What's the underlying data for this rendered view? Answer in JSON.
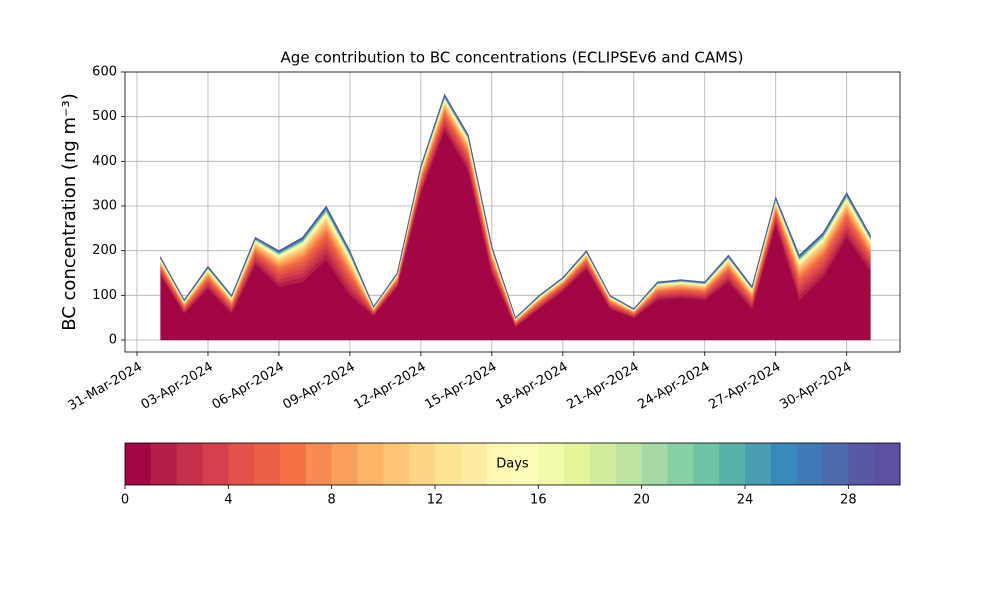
{
  "chart_data": {
    "type": "stacked-area",
    "title": "Age contribution to BC concentrations (ECLIPSEv6 and CAMS)",
    "y_label": "BC concentration (ng m⁻³)",
    "x": [
      "2024-04-01",
      "2024-04-02",
      "2024-04-03",
      "2024-04-04",
      "2024-04-05",
      "2024-04-06",
      "2024-04-07",
      "2024-04-08",
      "2024-04-09",
      "2024-04-10",
      "2024-04-11",
      "2024-04-12",
      "2024-04-13",
      "2024-04-14",
      "2024-04-15",
      "2024-04-16",
      "2024-04-17",
      "2024-04-18",
      "2024-04-19",
      "2024-04-20",
      "2024-04-21",
      "2024-04-22",
      "2024-04-23",
      "2024-04-24",
      "2024-04-25",
      "2024-04-26",
      "2024-04-27",
      "2024-04-28",
      "2024-04-29",
      "2024-04-30",
      "2024-05-01"
    ],
    "xlim": [
      "2024-03-31",
      "2024-05-02"
    ],
    "xticks": [
      {
        "value": "2024-03-31",
        "label": "31-Mar-2024"
      },
      {
        "value": "2024-04-03",
        "label": "03-Apr-2024"
      },
      {
        "value": "2024-04-06",
        "label": "06-Apr-2024"
      },
      {
        "value": "2024-04-09",
        "label": "09-Apr-2024"
      },
      {
        "value": "2024-04-12",
        "label": "12-Apr-2024"
      },
      {
        "value": "2024-04-15",
        "label": "15-Apr-2024"
      },
      {
        "value": "2024-04-18",
        "label": "18-Apr-2024"
      },
      {
        "value": "2024-04-21",
        "label": "21-Apr-2024"
      },
      {
        "value": "2024-04-24",
        "label": "24-Apr-2024"
      },
      {
        "value": "2024-04-27",
        "label": "27-Apr-2024"
      },
      {
        "value": "2024-04-30",
        "label": "30-Apr-2024"
      }
    ],
    "ylim": [
      0,
      600
    ],
    "yticks": [
      0,
      100,
      200,
      300,
      400,
      500,
      600
    ],
    "grid": true,
    "series": [
      {
        "color": "#a20643",
        "values": [
          145,
          60,
          115,
          60,
          170,
          120,
          130,
          180,
          100,
          55,
          120,
          330,
          470,
          380,
          150,
          30,
          70,
          110,
          160,
          70,
          50,
          90,
          95,
          90,
          130,
          70,
          260,
          90,
          140,
          230,
          155
        ]
      },
      {
        "color": "#b41e48",
        "values": [
          4,
          3,
          5,
          4,
          6,
          8,
          10,
          12,
          10,
          2,
          3,
          6,
          8,
          8,
          6,
          2,
          3,
          3,
          4,
          3,
          2,
          4,
          4,
          4,
          6,
          5,
          6,
          10,
          10,
          10,
          8
        ]
      },
      {
        "color": "#c5314b",
        "values": [
          4,
          3,
          5,
          4,
          6,
          8,
          10,
          12,
          10,
          2,
          3,
          6,
          8,
          8,
          6,
          2,
          3,
          3,
          4,
          3,
          2,
          4,
          4,
          4,
          6,
          5,
          6,
          10,
          10,
          10,
          8
        ]
      },
      {
        "color": "#d6404e",
        "values": [
          4,
          3,
          5,
          4,
          6,
          8,
          10,
          12,
          10,
          2,
          3,
          6,
          8,
          8,
          6,
          2,
          3,
          3,
          4,
          3,
          2,
          4,
          4,
          4,
          6,
          5,
          6,
          10,
          10,
          10,
          8
        ]
      },
      {
        "color": "#e1514a",
        "values": [
          3.6,
          2.7,
          4.5,
          3.6,
          5.4,
          7.2,
          9,
          10.8,
          9,
          1.8,
          2.7,
          5.4,
          7.2,
          7.2,
          5.4,
          1.8,
          2.7,
          2.7,
          3.6,
          2.7,
          1.8,
          3.6,
          3.6,
          3.6,
          5.4,
          4.5,
          5.4,
          9,
          9,
          9,
          7.2
        ]
      },
      {
        "color": "#ea6045",
        "values": [
          3.2,
          2.4,
          4,
          3.2,
          4.8,
          6.4,
          8,
          9.6,
          8,
          1.6,
          2.4,
          4.8,
          6.4,
          6.4,
          4.8,
          1.6,
          2.4,
          2.4,
          3.2,
          2.4,
          1.6,
          3.2,
          3.2,
          3.2,
          4.8,
          4,
          4.8,
          8,
          8,
          8,
          6.4
        ]
      },
      {
        "color": "#f47244",
        "values": [
          2.8,
          2.1,
          3.5,
          2.8,
          4.2,
          5.6,
          7,
          8.4,
          7,
          1.4,
          2.1,
          4.2,
          5.6,
          5.6,
          4.2,
          1.4,
          2.1,
          2.1,
          2.8,
          2.1,
          1.4,
          2.8,
          2.8,
          2.8,
          4.2,
          3.5,
          4.2,
          7,
          7,
          7,
          5.6
        ]
      },
      {
        "color": "#f88b51",
        "values": [
          2.4,
          1.8,
          3,
          2.4,
          3.6,
          4.8,
          6,
          7.2,
          6,
          1.2,
          1.8,
          3.6,
          4.8,
          4.8,
          3.6,
          1.2,
          1.8,
          1.8,
          2.4,
          1.8,
          1.2,
          2.4,
          2.4,
          2.4,
          3.6,
          3,
          3.6,
          6,
          6,
          6,
          4.8
        ]
      },
      {
        "color": "#fba05b",
        "values": [
          2,
          1.5,
          2.5,
          2,
          3,
          4,
          5,
          6,
          5,
          1,
          1.5,
          3,
          4,
          4,
          3,
          1,
          1.5,
          1.5,
          2,
          1.5,
          1,
          2,
          2,
          2,
          3,
          2.5,
          3,
          5,
          5,
          5,
          4
        ]
      },
      {
        "color": "#fdb567",
        "values": [
          2,
          1.5,
          2.5,
          2,
          3,
          4,
          5,
          6,
          5,
          1,
          1.5,
          3,
          4,
          4,
          3,
          1,
          1.5,
          1.5,
          2,
          1.5,
          1,
          2,
          2,
          2,
          3,
          2.5,
          3,
          5,
          5,
          5,
          4
        ]
      },
      {
        "color": "#fdc574",
        "values": [
          1.6,
          1.2,
          2,
          1.6,
          2.4,
          3.2,
          4,
          4.8,
          4,
          0.8,
          1.2,
          2.4,
          3.2,
          3.2,
          2.4,
          0.8,
          1.2,
          1.2,
          1.6,
          1.2,
          0.8,
          1.6,
          1.6,
          1.6,
          2.4,
          2,
          2.4,
          4,
          4,
          4,
          3.2
        ]
      },
      {
        "color": "#fed582",
        "values": [
          1.2,
          0.9,
          1.5,
          1.2,
          1.8,
          2.4,
          3,
          3.6,
          3,
          0.6,
          0.9,
          1.8,
          2.4,
          2.4,
          1.8,
          0.6,
          0.9,
          0.9,
          1.2,
          0.9,
          0.6,
          1.2,
          1.2,
          1.2,
          1.8,
          1.5,
          1.8,
          3,
          3,
          3,
          2.4
        ]
      },
      {
        "color": "#fee391",
        "values": [
          1.2,
          0.9,
          1.5,
          1.2,
          1.8,
          2.4,
          3,
          3.6,
          3,
          0.6,
          0.9,
          1.8,
          2.4,
          2.4,
          1.8,
          0.6,
          0.9,
          0.9,
          1.2,
          0.9,
          0.6,
          1.2,
          1.2,
          1.2,
          1.8,
          1.5,
          1.8,
          3,
          3,
          3,
          2.4
        ]
      },
      {
        "color": "#feeda1",
        "values": [
          0.8,
          0.6,
          1,
          0.8,
          1.2,
          1.6,
          2,
          2.4,
          2,
          0.4,
          0.6,
          1.2,
          1.6,
          1.6,
          1.2,
          0.4,
          0.6,
          0.6,
          0.8,
          0.6,
          0.4,
          0.8,
          0.8,
          0.8,
          1.2,
          1,
          1.2,
          2,
          2,
          2,
          1.6
        ]
      },
      {
        "color": "#fff8b2",
        "values": [
          0.8,
          0.6,
          1,
          0.8,
          1.2,
          1.6,
          2,
          2.4,
          2,
          0.4,
          0.6,
          1.2,
          1.6,
          1.6,
          1.2,
          0.4,
          0.6,
          0.6,
          0.8,
          0.6,
          0.4,
          0.8,
          0.8,
          0.8,
          1.2,
          1,
          1.2,
          2,
          2,
          2,
          1.6
        ]
      },
      {
        "color": "#fbfdb9",
        "values": [
          0.8,
          0.6,
          1,
          0.8,
          1.2,
          1.6,
          2,
          2.4,
          2,
          0.4,
          0.6,
          1.2,
          1.6,
          1.6,
          1.2,
          0.4,
          0.6,
          0.6,
          0.8,
          0.6,
          0.4,
          0.8,
          0.8,
          0.8,
          1.2,
          1,
          1.2,
          2,
          2,
          2,
          1.6
        ]
      },
      {
        "color": "#f2faab",
        "values": [
          0.4,
          0.3,
          0.5,
          0.4,
          0.6,
          0.8,
          1,
          1.2,
          1,
          0.2,
          0.3,
          0.6,
          0.8,
          0.8,
          0.6,
          0.2,
          0.3,
          0.3,
          0.4,
          0.3,
          0.2,
          0.4,
          0.4,
          0.4,
          0.6,
          0.5,
          0.6,
          1,
          1,
          1,
          0.8
        ]
      },
      {
        "color": "#e5f49b",
        "values": [
          0.4,
          0.3,
          0.5,
          0.4,
          0.6,
          0.8,
          1,
          1.2,
          1,
          0.2,
          0.3,
          0.6,
          0.8,
          0.8,
          0.6,
          0.2,
          0.3,
          0.3,
          0.4,
          0.3,
          0.2,
          0.4,
          0.4,
          0.4,
          0.6,
          0.5,
          0.6,
          1,
          1,
          1,
          0.8
        ]
      },
      {
        "color": "#d1ec9c",
        "values": [
          0.4,
          0.3,
          0.5,
          0.4,
          0.6,
          0.8,
          1,
          1.2,
          1,
          0.2,
          0.3,
          0.6,
          0.8,
          0.8,
          0.6,
          0.2,
          0.3,
          0.3,
          0.4,
          0.3,
          0.2,
          0.4,
          0.4,
          0.4,
          0.6,
          0.5,
          0.6,
          1,
          1,
          1,
          0.8
        ]
      },
      {
        "color": "#bce4a0",
        "values": [
          0.4,
          0.3,
          0.5,
          0.4,
          0.6,
          0.8,
          1,
          1.2,
          1,
          0.2,
          0.3,
          0.6,
          0.8,
          0.8,
          0.6,
          0.2,
          0.3,
          0.3,
          0.4,
          0.3,
          0.2,
          0.4,
          0.4,
          0.4,
          0.6,
          0.5,
          0.6,
          1,
          1,
          1,
          0.8
        ]
      },
      {
        "color": "#a2d9a4",
        "values": [
          0.4,
          0.3,
          0.5,
          0.4,
          0.6,
          0.8,
          1,
          1.2,
          1,
          0.2,
          0.3,
          0.6,
          0.8,
          0.8,
          0.6,
          0.2,
          0.3,
          0.3,
          0.4,
          0.3,
          0.2,
          0.4,
          0.4,
          0.4,
          0.6,
          0.5,
          0.6,
          1,
          1,
          1,
          0.8
        ]
      },
      {
        "color": "#87cfa4",
        "values": [
          0.4,
          0.3,
          0.5,
          0.4,
          0.6,
          0.8,
          1,
          1.2,
          1,
          0.2,
          0.3,
          0.6,
          0.8,
          0.8,
          0.6,
          0.2,
          0.3,
          0.3,
          0.4,
          0.3,
          0.2,
          0.4,
          0.4,
          0.4,
          0.6,
          0.5,
          0.6,
          1,
          1,
          1,
          0.8
        ]
      },
      {
        "color": "#6dc4a5",
        "values": [
          0.4,
          0.3,
          0.5,
          0.4,
          0.6,
          0.8,
          1,
          1.2,
          1,
          0.2,
          0.3,
          0.6,
          0.8,
          0.8,
          0.6,
          0.2,
          0.3,
          0.3,
          0.4,
          0.3,
          0.2,
          0.4,
          0.4,
          0.4,
          0.6,
          0.5,
          0.6,
          1,
          1,
          1,
          0.8
        ]
      },
      {
        "color": "#58b1ab",
        "values": [
          0.4,
          0.3,
          0.5,
          0.4,
          0.6,
          0.8,
          1,
          1.2,
          1,
          0.2,
          0.3,
          0.6,
          0.8,
          0.8,
          0.6,
          0.2,
          0.3,
          0.3,
          0.4,
          0.3,
          0.2,
          0.4,
          0.4,
          0.4,
          0.6,
          0.5,
          0.6,
          1,
          1,
          1,
          0.8
        ]
      },
      {
        "color": "#4a9db3",
        "values": [
          0.4,
          0.3,
          0.5,
          0.4,
          0.6,
          0.8,
          1,
          1.2,
          1,
          0.2,
          0.3,
          0.6,
          0.8,
          0.8,
          0.6,
          0.2,
          0.3,
          0.3,
          0.4,
          0.3,
          0.2,
          0.4,
          0.4,
          0.4,
          0.6,
          0.5,
          0.6,
          1,
          1,
          1,
          0.8
        ]
      },
      {
        "color": "#3a89bc",
        "values": [
          0.4,
          0.3,
          0.5,
          0.4,
          0.6,
          0.8,
          1,
          1.2,
          1,
          0.2,
          0.3,
          0.6,
          0.8,
          0.8,
          0.6,
          0.2,
          0.3,
          0.3,
          0.4,
          0.3,
          0.2,
          0.4,
          0.4,
          0.4,
          0.6,
          0.5,
          0.6,
          1,
          1,
          1,
          0.8
        ]
      },
      {
        "color": "#3f7ab7",
        "values": [
          0.4,
          0.3,
          0.5,
          0.4,
          0.6,
          0.8,
          1,
          1.2,
          1,
          0.2,
          0.3,
          0.6,
          0.8,
          0.8,
          0.6,
          0.2,
          0.3,
          0.3,
          0.4,
          0.3,
          0.2,
          0.4,
          0.4,
          0.4,
          0.6,
          0.5,
          0.6,
          1,
          1,
          1,
          0.8
        ]
      },
      {
        "color": "#4d69ae",
        "values": [
          0.4,
          0.3,
          0.5,
          0.4,
          0.6,
          0.8,
          1,
          1.2,
          1,
          0.2,
          0.3,
          0.6,
          0.8,
          0.8,
          0.6,
          0.2,
          0.3,
          0.3,
          0.4,
          0.3,
          0.2,
          0.4,
          0.4,
          0.4,
          0.6,
          0.5,
          0.6,
          1,
          1,
          1,
          0.8
        ]
      },
      {
        "color": "#5758a6",
        "values": [
          0.4,
          0.3,
          0.5,
          0.4,
          0.6,
          0.8,
          1,
          1.2,
          1,
          0.2,
          0.3,
          0.6,
          0.8,
          0.8,
          0.6,
          0.2,
          0.3,
          0.3,
          0.4,
          0.3,
          0.2,
          0.4,
          0.4,
          0.4,
          0.6,
          0.5,
          0.6,
          1,
          1,
          1,
          0.8
        ]
      },
      {
        "color": "#5e4fa2",
        "values": [
          0.4,
          0.3,
          0.5,
          0.4,
          0.6,
          0.8,
          1,
          1.2,
          1,
          0.2,
          0.3,
          0.6,
          0.8,
          0.8,
          0.6,
          0.2,
          0.3,
          0.3,
          0.4,
          0.3,
          0.2,
          0.4,
          0.4,
          0.4,
          0.6,
          0.5,
          0.6,
          1,
          1,
          1,
          0.8
        ]
      }
    ],
    "colorbar": {
      "label": "Days",
      "lim": [
        0,
        30
      ],
      "ticks": [
        0,
        4,
        8,
        12,
        16,
        20,
        24,
        28
      ]
    }
  }
}
